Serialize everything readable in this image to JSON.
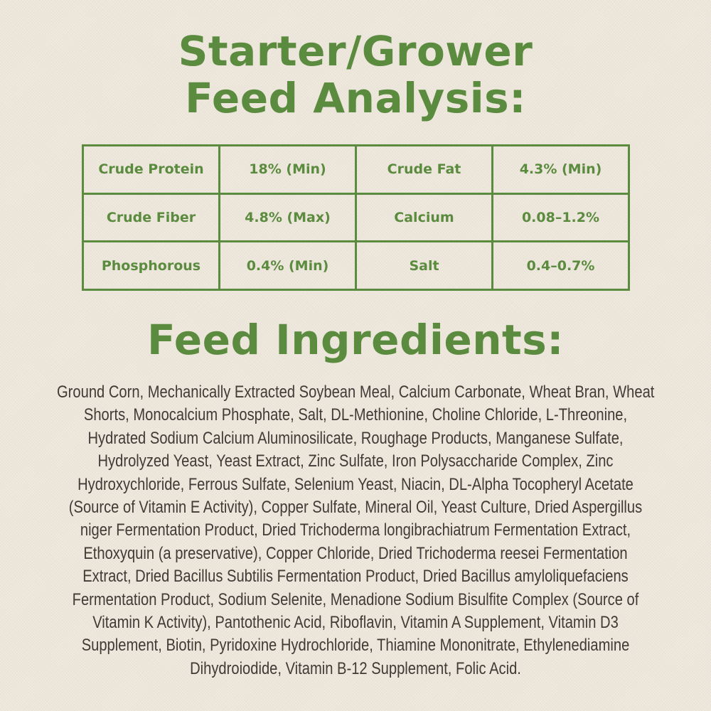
{
  "title": {
    "line1": "Starter/Grower",
    "line2": "Feed Analysis:"
  },
  "analysis": [
    [
      "Crude Protein",
      "18% (Min)",
      "Crude Fat",
      "4.3% (Min)"
    ],
    [
      "Crude Fiber",
      "4.8% (Max)",
      "Calcium",
      "0.08–1.2%"
    ],
    [
      "Phosphorous",
      "0.4% (Min)",
      "Salt",
      "0.4–0.7%"
    ]
  ],
  "ingredients_title": "Feed Ingredients:",
  "ingredients_lines": [
    "Ground Corn, Mechanically Extracted Soybean Meal, Calcium Carbonate, Wheat Bran, Wheat",
    "Shorts, Monocalcium Phosphate, Salt, DL-Methionine, Choline Chloride, L-Threonine,",
    "Hydrated Sodium Calcium Aluminosilicate, Roughage Products, Manganese Sulfate,",
    "Hydrolyzed Yeast, Yeast Extract, Zinc Sulfate, Iron Polysaccharide Complex, Zinc",
    "Hydroxychloride, Ferrous Sulfate, Selenium Yeast, Niacin, DL-Alpha Tocopheryl Acetate",
    "(Source of Vitamin E Activity), Copper Sulfate, Mineral Oil, Yeast Culture, Dried Aspergillus",
    "niger Fermentation Product, Dried Trichoderma longibrachiatrum Fermentation Extract,",
    "Ethoxyquin (a preservative), Copper Chloride, Dried Trichoderma reesei Fermentation",
    "Extract, Dried Bacillus Subtilis Fermentation Product, Dried Bacillus amyloliquefaciens",
    "Fermentation Product, Sodium Selenite, Menadione Sodium Bisulfite Complex (Source of",
    "Vitamin K Activity), Pantothenic Acid, Riboflavin, Vitamin A Supplement, Vitamin D3",
    "Supplement, Biotin, Pyridoxine Hydrochloride, Thiamine Mononitrate, Ethylenediamine",
    "Dihydroiodide, Vitamin B-12 Supplement, Folic Acid."
  ],
  "colors": {
    "accent": "#5b8b3e",
    "text": "#3f3b36",
    "background": "#ede6da"
  }
}
